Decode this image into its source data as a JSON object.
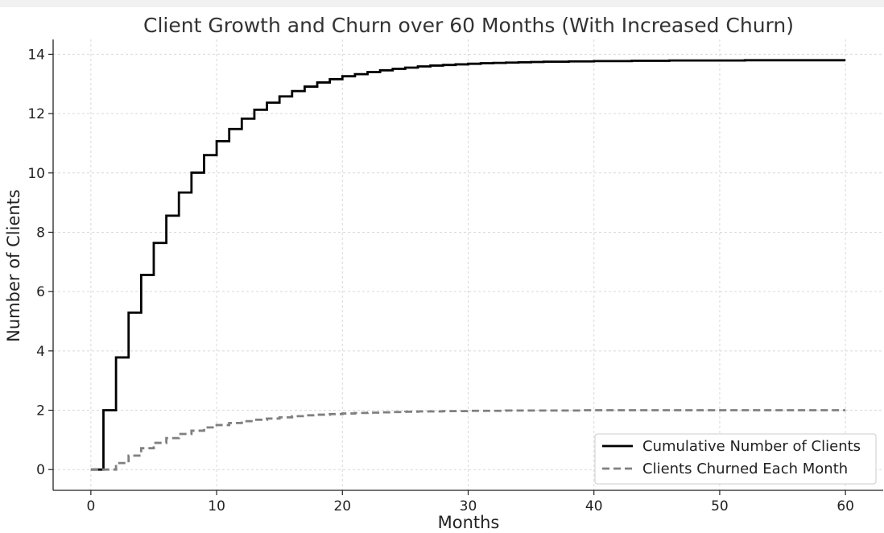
{
  "chart_data": {
    "type": "line",
    "step": "post",
    "title": "Client Growth and Churn over 60 Months (With Increased Churn)",
    "xlabel": "Months",
    "ylabel": "Number of Clients",
    "xlim": [
      -3,
      63
    ],
    "ylim": [
      -0.7,
      14.5
    ],
    "xticks": [
      0,
      10,
      20,
      30,
      40,
      50,
      60
    ],
    "yticks": [
      0,
      2,
      4,
      6,
      8,
      10,
      12,
      14
    ],
    "grid": true,
    "legend_position": "lower right",
    "series": [
      {
        "name": "Cumulative Number of Clients",
        "color": "#000000",
        "style": "solid",
        "x": [
          0,
          1,
          2,
          3,
          4,
          5,
          6,
          7,
          8,
          9,
          10,
          11,
          12,
          13,
          14,
          15,
          16,
          17,
          18,
          19,
          20,
          21,
          22,
          23,
          24,
          25,
          26,
          27,
          28,
          29,
          30,
          31,
          32,
          33,
          34,
          35,
          36,
          37,
          38,
          39,
          40,
          41,
          42,
          43,
          44,
          45,
          46,
          47,
          48,
          49,
          50,
          51,
          52,
          53,
          54,
          55,
          56,
          57,
          58,
          59,
          60
        ],
        "values": [
          0,
          2.0,
          3.78,
          5.29,
          6.56,
          7.64,
          8.56,
          9.34,
          10.01,
          10.6,
          11.07,
          11.48,
          11.83,
          12.13,
          12.37,
          12.58,
          12.76,
          12.91,
          13.05,
          13.16,
          13.26,
          13.33,
          13.4,
          13.46,
          13.51,
          13.55,
          13.59,
          13.62,
          13.64,
          13.66,
          13.68,
          13.7,
          13.71,
          13.72,
          13.73,
          13.74,
          13.75,
          13.75,
          13.76,
          13.76,
          13.77,
          13.77,
          13.77,
          13.78,
          13.78,
          13.78,
          13.79,
          13.79,
          13.79,
          13.79,
          13.79,
          13.79,
          13.8,
          13.8,
          13.8,
          13.8,
          13.8,
          13.8,
          13.8,
          13.8,
          13.8
        ]
      },
      {
        "name": "Clients Churned Each Month",
        "color": "#808080",
        "style": "dashed",
        "x": [
          0,
          1,
          2,
          3,
          4,
          5,
          6,
          7,
          8,
          9,
          10,
          11,
          12,
          13,
          14,
          15,
          16,
          17,
          18,
          19,
          20,
          21,
          22,
          23,
          24,
          25,
          26,
          27,
          28,
          29,
          30,
          31,
          32,
          33,
          34,
          35,
          36,
          37,
          38,
          39,
          40,
          41,
          42,
          43,
          44,
          45,
          46,
          47,
          48,
          49,
          50,
          51,
          52,
          53,
          54,
          55,
          56,
          57,
          58,
          59,
          60
        ],
        "values": [
          0,
          0,
          0.22,
          0.47,
          0.72,
          0.9,
          1.06,
          1.2,
          1.31,
          1.42,
          1.5,
          1.57,
          1.63,
          1.68,
          1.72,
          1.76,
          1.8,
          1.83,
          1.85,
          1.87,
          1.89,
          1.91,
          1.92,
          1.93,
          1.94,
          1.95,
          1.96,
          1.96,
          1.97,
          1.97,
          1.98,
          1.98,
          1.98,
          1.99,
          1.99,
          1.99,
          1.99,
          1.99,
          1.99,
          2.0,
          2.0,
          2.0,
          2.0,
          2.0,
          2.0,
          2.0,
          2.0,
          2.0,
          2.0,
          2.0,
          2.0,
          2.0,
          2.0,
          2.0,
          2.0,
          2.0,
          2.0,
          2.0,
          2.0,
          2.0,
          2.0
        ]
      }
    ]
  },
  "colors": {
    "grid": "#d9d9d9",
    "axis": "#222222",
    "legend_border": "#cccccc"
  }
}
